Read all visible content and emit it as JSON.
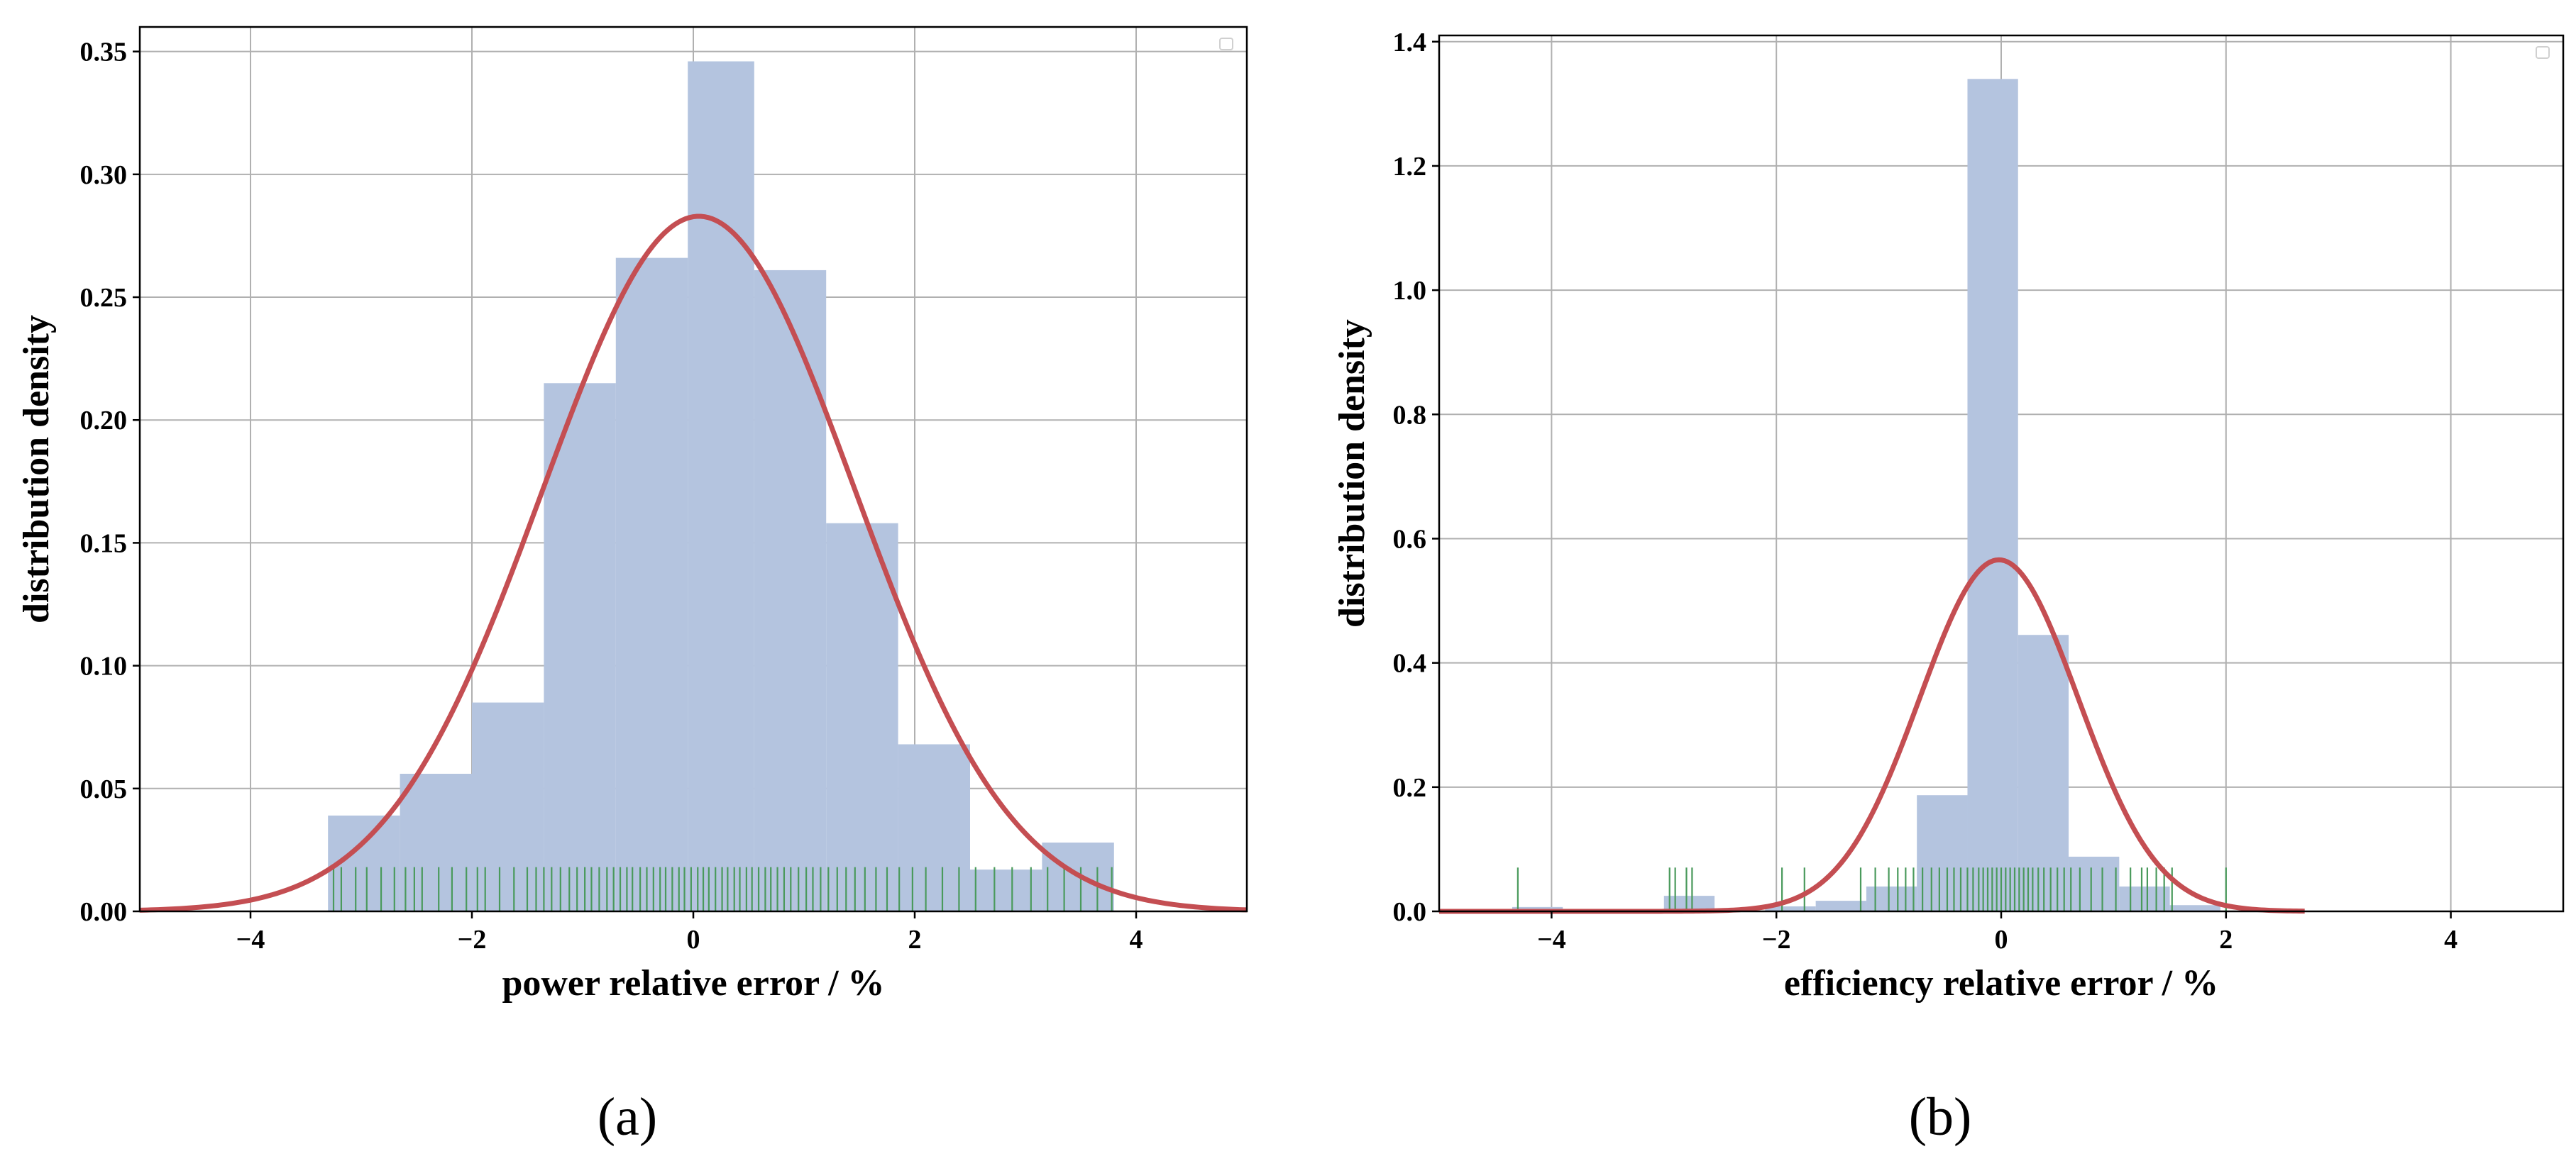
{
  "chart_data": [
    {
      "type": "histogram",
      "panel_label": "(a)",
      "xlabel": "power relative error / %",
      "ylabel": "distribution density",
      "xlim": [
        -5,
        5
      ],
      "ylim": [
        0,
        0.36
      ],
      "xticks": [
        -4,
        -2,
        0,
        2,
        4
      ],
      "xtick_labels": [
        "−4",
        "−2",
        "0",
        "2",
        "4"
      ],
      "yticks": [
        0,
        0.05,
        0.1,
        0.15,
        0.2,
        0.25,
        0.3,
        0.35
      ],
      "ytick_labels": [
        "0.00",
        "0.05",
        "0.10",
        "0.15",
        "0.20",
        "0.25",
        "0.30",
        "0.35"
      ],
      "grid": true,
      "legend": "top-right",
      "bars": [
        {
          "x0": -3.3,
          "x1": -2.65,
          "value": 0.039
        },
        {
          "x0": -2.65,
          "x1": -2.0,
          "value": 0.056
        },
        {
          "x0": -2.0,
          "x1": -1.35,
          "value": 0.085
        },
        {
          "x0": -1.35,
          "x1": -0.7,
          "value": 0.215
        },
        {
          "x0": -0.7,
          "x1": -0.05,
          "value": 0.266
        },
        {
          "x0": -0.05,
          "x1": 0.55,
          "value": 0.346
        },
        {
          "x0": 0.55,
          "x1": 1.2,
          "value": 0.261
        },
        {
          "x0": 1.2,
          "x1": 1.85,
          "value": 0.158
        },
        {
          "x0": 1.85,
          "x1": 2.5,
          "value": 0.068
        },
        {
          "x0": 2.5,
          "x1": 3.15,
          "value": 0.017
        },
        {
          "x0": 3.15,
          "x1": 3.8,
          "value": 0.028
        }
      ],
      "fit": {
        "mean": 0.05,
        "std": 1.41
      },
      "rug": [
        -3.25,
        -3.18,
        -3.05,
        -2.95,
        -2.82,
        -2.7,
        -2.6,
        -2.52,
        -2.45,
        -2.3,
        -2.18,
        -2.05,
        -1.95,
        -1.88,
        -1.75,
        -1.62,
        -1.5,
        -1.42,
        -1.35,
        -1.28,
        -1.2,
        -1.12,
        -1.05,
        -0.98,
        -0.92,
        -0.85,
        -0.78,
        -0.72,
        -0.66,
        -0.6,
        -0.55,
        -0.48,
        -0.42,
        -0.36,
        -0.3,
        -0.25,
        -0.19,
        -0.13,
        -0.08,
        -0.02,
        0.04,
        0.09,
        0.14,
        0.2,
        0.26,
        0.31,
        0.37,
        0.42,
        0.48,
        0.53,
        0.59,
        0.65,
        0.7,
        0.76,
        0.82,
        0.88,
        0.95,
        1.02,
        1.08,
        1.15,
        1.22,
        1.3,
        1.38,
        1.46,
        1.55,
        1.65,
        1.75,
        1.86,
        1.98,
        2.1,
        2.25,
        2.4,
        2.55,
        2.72,
        2.88,
        3.05,
        3.2,
        3.35,
        3.5,
        3.65,
        3.78
      ]
    },
    {
      "type": "histogram",
      "panel_label": "(b)",
      "xlabel": "efficiency relative error / %",
      "ylabel": "distribution density",
      "xlim": [
        -5,
        5
      ],
      "ylim": [
        0,
        1.41
      ],
      "xticks": [
        -4,
        -2,
        0,
        2,
        4
      ],
      "xtick_labels": [
        "−4",
        "−2",
        "0",
        "2",
        "4"
      ],
      "yticks": [
        0,
        0.2,
        0.4,
        0.6,
        0.8,
        1.0,
        1.2,
        1.4
      ],
      "ytick_labels": [
        "0.0",
        "0.2",
        "0.4",
        "0.6",
        "0.8",
        "1.0",
        "1.2",
        "1.4"
      ],
      "grid": true,
      "legend": "top-right",
      "bars": [
        {
          "x0": -4.35,
          "x1": -3.9,
          "value": 0.007
        },
        {
          "x0": -3.0,
          "x1": -2.55,
          "value": 0.025
        },
        {
          "x0": -2.1,
          "x1": -1.65,
          "value": 0.008
        },
        {
          "x0": -1.65,
          "x1": -1.2,
          "value": 0.017
        },
        {
          "x0": -1.2,
          "x1": -0.75,
          "value": 0.04
        },
        {
          "x0": -0.75,
          "x1": -0.3,
          "value": 0.187
        },
        {
          "x0": -0.3,
          "x1": 0.15,
          "value": 1.34
        },
        {
          "x0": 0.15,
          "x1": 0.6,
          "value": 0.445
        },
        {
          "x0": 0.6,
          "x1": 1.05,
          "value": 0.088
        },
        {
          "x0": 1.05,
          "x1": 1.5,
          "value": 0.04
        },
        {
          "x0": 1.5,
          "x1": 1.95,
          "value": 0.01
        }
      ],
      "fit": {
        "mean": -0.02,
        "std": 0.705,
        "x_end": 2.7
      },
      "rug": [
        -4.3,
        -2.95,
        -2.9,
        -2.8,
        -2.75,
        -1.95,
        -1.75,
        -1.25,
        -1.12,
        -1.0,
        -0.92,
        -0.85,
        -0.78,
        -0.7,
        -0.62,
        -0.55,
        -0.48,
        -0.42,
        -0.36,
        -0.3,
        -0.25,
        -0.2,
        -0.16,
        -0.12,
        -0.08,
        -0.04,
        0.0,
        0.04,
        0.08,
        0.12,
        0.16,
        0.2,
        0.24,
        0.28,
        0.33,
        0.38,
        0.44,
        0.5,
        0.56,
        0.62,
        0.7,
        0.8,
        0.9,
        1.02,
        1.15,
        1.25,
        1.3,
        1.38,
        1.45,
        1.52,
        2.0
      ]
    }
  ]
}
